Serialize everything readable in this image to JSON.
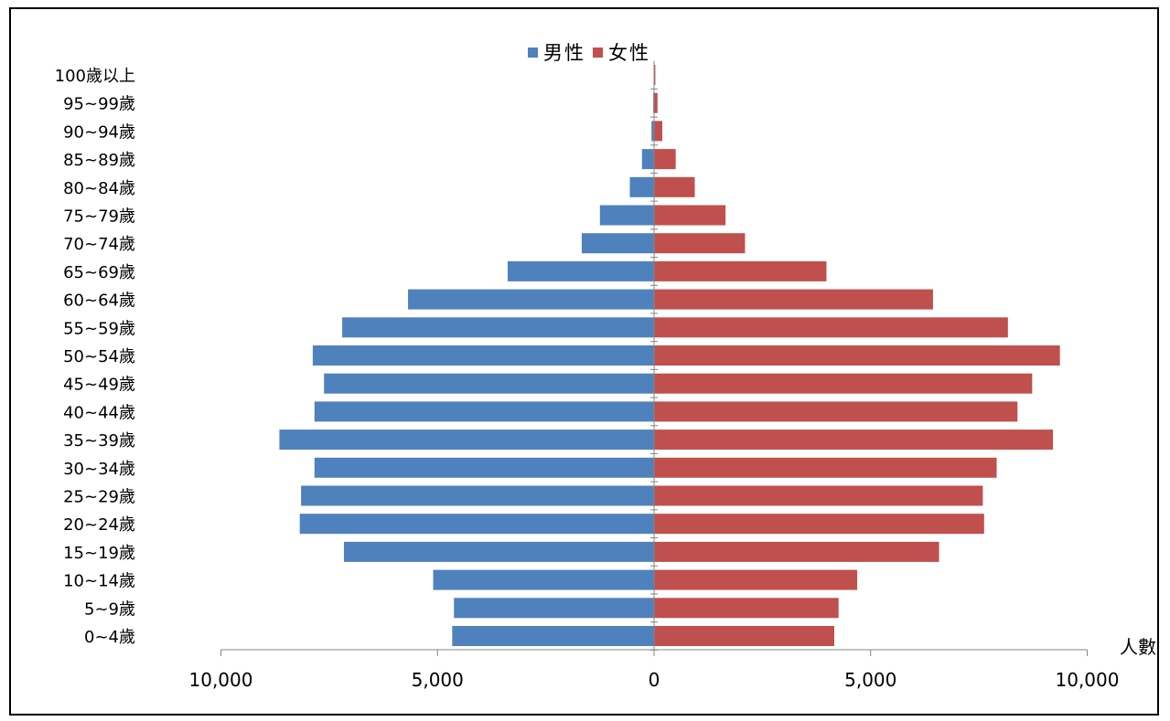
{
  "chart_data": {
    "type": "bar",
    "orientation": "horizontal",
    "categories": [
      "100歲以上",
      "95~99歲",
      "90~94歲",
      "85~89歲",
      "80~84歲",
      "75~79歲",
      "70~74歲",
      "65~69歲",
      "60~64歲",
      "55~59歲",
      "50~54歲",
      "45~49歲",
      "40~44歲",
      "35~39歲",
      "30~34歲",
      "25~29歲",
      "20~24歲",
      "15~19歲",
      "10~14歲",
      "5~9歲",
      "0~4歲"
    ],
    "series": [
      {
        "name": "男性",
        "color": "#4f81bd",
        "direction": "left",
        "values": [
          10,
          20,
          60,
          280,
          560,
          1250,
          1670,
          3380,
          5680,
          7200,
          7880,
          7620,
          7840,
          8650,
          7840,
          8150,
          8180,
          7160,
          5100,
          4620,
          4660
        ]
      },
      {
        "name": "女性",
        "color": "#c0504d",
        "direction": "right",
        "values": [
          30,
          80,
          190,
          500,
          940,
          1650,
          2100,
          3980,
          6440,
          8170,
          9370,
          8730,
          8390,
          9210,
          7910,
          7590,
          7620,
          6580,
          4690,
          4260,
          4160
        ]
      }
    ],
    "xaxis": {
      "ticks": [
        -10000,
        -5000,
        0,
        5000,
        10000
      ],
      "tick_labels": [
        "10,000",
        "5,000",
        "0",
        "5,000",
        "10,000"
      ],
      "range": [
        -10000,
        10000
      ]
    },
    "xlabel": "人數",
    "legend_position": "top",
    "grid": false
  }
}
